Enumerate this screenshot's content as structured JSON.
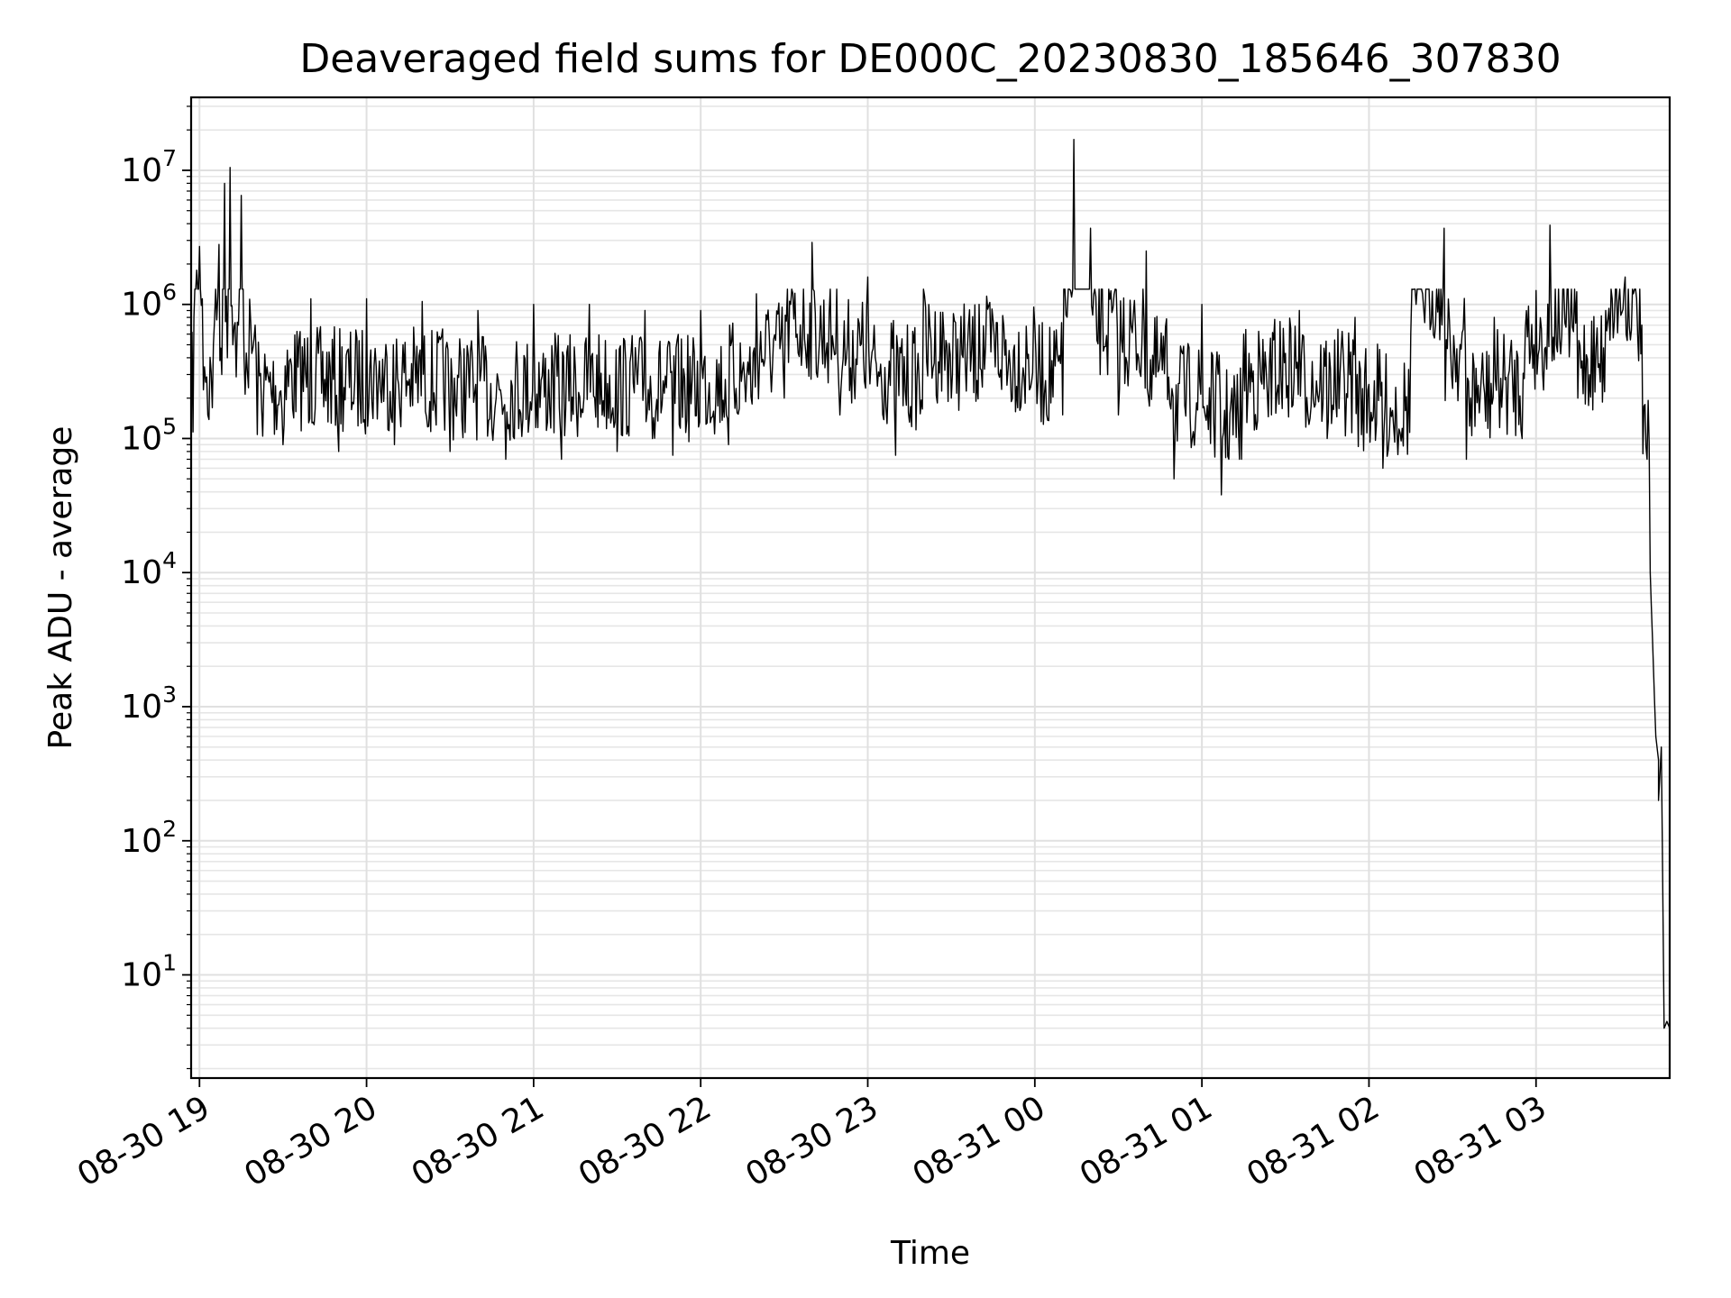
{
  "chart_data": {
    "type": "line",
    "title": "Deaveraged field sums for DE000C_20230830_185646_307830",
    "xlabel": "Time",
    "ylabel": "Peak ADU - average",
    "yscale": "log",
    "grid": "on (major and minor)",
    "legend": "none",
    "xlim": [
      "2023-08-30 18:57",
      "2023-08-31 03:48"
    ],
    "ylim": [
      1.7,
      35000000
    ],
    "x_ticks": [
      "08-30 19",
      "08-30 20",
      "08-30 21",
      "08-30 22",
      "08-30 23",
      "08-31 00",
      "08-31 01",
      "08-31 02",
      "08-31 03"
    ],
    "y_ticks": [
      {
        "value": 10,
        "base": "10",
        "exp": "1"
      },
      {
        "value": 100,
        "base": "10",
        "exp": "2"
      },
      {
        "value": 1000,
        "base": "10",
        "exp": "3"
      },
      {
        "value": 10000,
        "base": "10",
        "exp": "4"
      },
      {
        "value": 100000,
        "base": "10",
        "exp": "5"
      },
      {
        "value": 1000000,
        "base": "10",
        "exp": "6"
      },
      {
        "value": 10000000,
        "base": "10",
        "exp": "7"
      }
    ],
    "series": [
      {
        "color": "#000000",
        "points": [
          [
            "2023-08-30 18:57",
            90000
          ],
          [
            "2023-08-30 18:58",
            800000
          ],
          [
            "2023-08-30 18:59",
            1800000
          ],
          [
            "2023-08-30 19:00",
            2700000
          ],
          [
            "2023-08-30 19:01",
            1100000
          ],
          [
            "2023-08-30 19:03",
            150000
          ],
          [
            "2023-08-30 19:05",
            500000
          ],
          [
            "2023-08-30 19:07",
            2800000
          ],
          [
            "2023-08-30 19:08",
            300000
          ],
          [
            "2023-08-30 19:09",
            8000000
          ],
          [
            "2023-08-30 19:10",
            400000
          ],
          [
            "2023-08-30 19:11",
            10500000
          ],
          [
            "2023-08-30 19:12",
            500000
          ],
          [
            "2023-08-30 19:14",
            700000
          ],
          [
            "2023-08-30 19:15",
            6500000
          ],
          [
            "2023-08-30 19:16",
            400000
          ],
          [
            "2023-08-30 19:20",
            700000
          ],
          [
            "2023-08-30 19:30",
            90000
          ],
          [
            "2023-08-30 19:40",
            1100000
          ],
          [
            "2023-08-30 19:50",
            80000
          ],
          [
            "2023-08-30 20:00",
            1100000
          ],
          [
            "2023-08-30 20:10",
            90000
          ],
          [
            "2023-08-30 20:20",
            1050000
          ],
          [
            "2023-08-30 20:30",
            80000
          ],
          [
            "2023-08-30 20:40",
            900000
          ],
          [
            "2023-08-30 20:50",
            70000
          ],
          [
            "2023-08-30 21:00",
            1000000
          ],
          [
            "2023-08-30 21:10",
            70000
          ],
          [
            "2023-08-30 21:20",
            1000000
          ],
          [
            "2023-08-30 21:30",
            80000
          ],
          [
            "2023-08-30 21:40",
            900000
          ],
          [
            "2023-08-30 21:50",
            75000
          ],
          [
            "2023-08-30 22:00",
            900000
          ],
          [
            "2023-08-30 22:10",
            90000
          ],
          [
            "2023-08-30 22:20",
            1200000
          ],
          [
            "2023-08-30 22:30",
            200000
          ],
          [
            "2023-08-30 22:40",
            2900000
          ],
          [
            "2023-08-30 22:50",
            150000
          ],
          [
            "2023-08-30 23:00",
            1600000
          ],
          [
            "2023-08-30 23:10",
            75000
          ],
          [
            "2023-08-30 23:20",
            1300000
          ],
          [
            "2023-08-30 23:30",
            200000
          ],
          [
            "2023-08-30 23:40",
            1000000
          ],
          [
            "2023-08-30 23:50",
            250000
          ],
          [
            "2023-08-31 00:00",
            700000
          ],
          [
            "2023-08-31 00:10",
            150000
          ],
          [
            "2023-08-31 00:14",
            17000000
          ],
          [
            "2023-08-31 00:20",
            3700000
          ],
          [
            "2023-08-31 00:30",
            150000
          ],
          [
            "2023-08-31 00:40",
            2500000
          ],
          [
            "2023-08-31 00:50",
            50000
          ],
          [
            "2023-08-31 01:00",
            1000000
          ],
          [
            "2023-08-31 01:07",
            38000
          ],
          [
            "2023-08-31 01:15",
            600000
          ],
          [
            "2023-08-31 01:25",
            150000
          ],
          [
            "2023-08-31 01:35",
            900000
          ],
          [
            "2023-08-31 01:45",
            100000
          ],
          [
            "2023-08-31 01:55",
            800000
          ],
          [
            "2023-08-31 02:05",
            60000
          ],
          [
            "2023-08-31 02:15",
            600000
          ],
          [
            "2023-08-31 02:27",
            3700000
          ],
          [
            "2023-08-31 02:35",
            70000
          ],
          [
            "2023-08-31 02:45",
            800000
          ],
          [
            "2023-08-31 02:55",
            100000
          ],
          [
            "2023-08-31 03:05",
            3900000
          ],
          [
            "2023-08-31 03:15",
            200000
          ],
          [
            "2023-08-31 03:25",
            900000
          ],
          [
            "2023-08-31 03:32",
            1600000
          ],
          [
            "2023-08-31 03:35",
            1200000
          ],
          [
            "2023-08-31 03:38",
            700000
          ],
          [
            "2023-08-31 03:41",
            10000
          ],
          [
            "2023-08-31 03:43",
            600
          ],
          [
            "2023-08-31 03:44",
            400
          ],
          [
            "2023-08-31 03:44",
            200
          ],
          [
            "2023-08-31 03:45",
            500
          ],
          [
            "2023-08-31 03:46",
            4
          ],
          [
            "2023-08-31 03:47",
            4.5
          ],
          [
            "2023-08-31 03:48",
            4
          ]
        ]
      }
    ]
  }
}
